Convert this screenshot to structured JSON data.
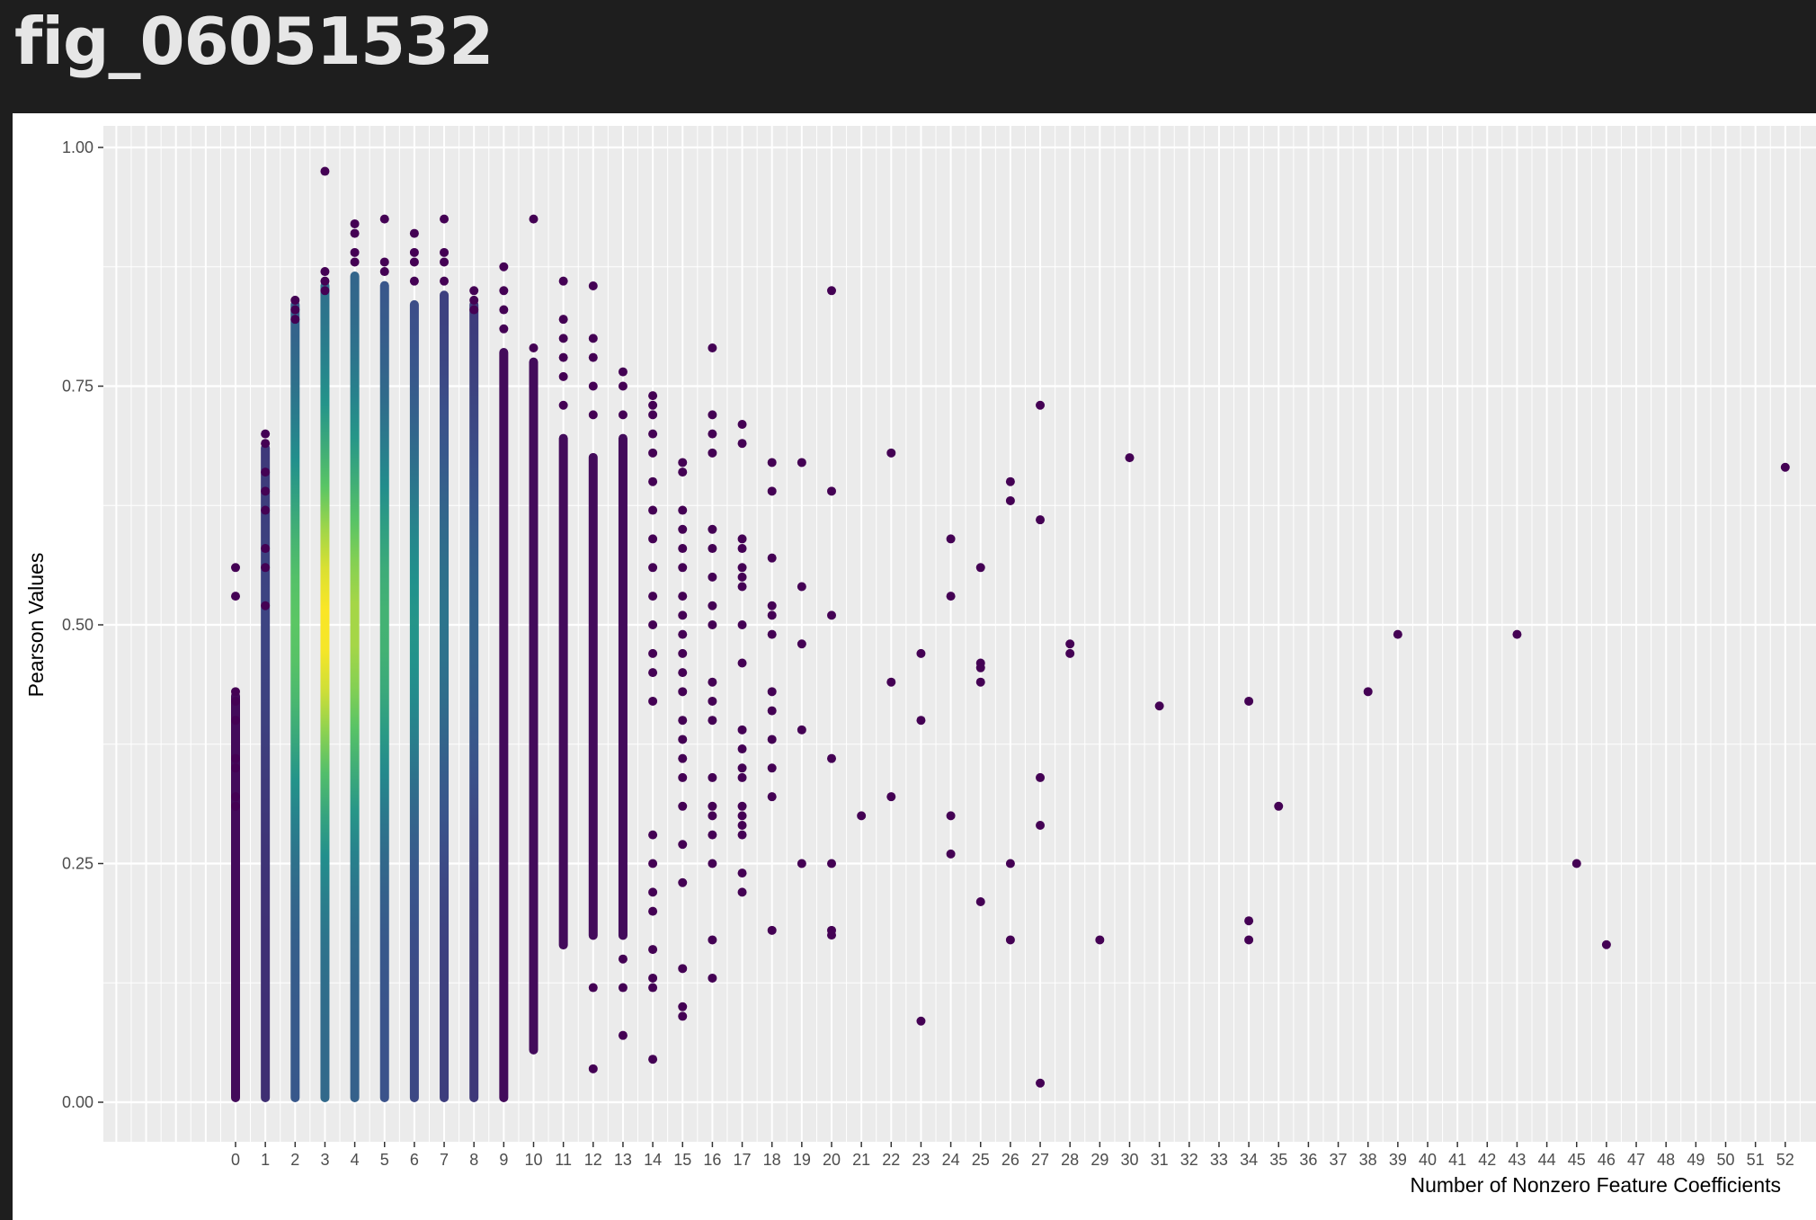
{
  "header": {
    "title": "fig_06051532"
  },
  "chart_data": {
    "type": "scatter",
    "title": "",
    "xlabel": "Number of Nonzero Feature Coefficients",
    "ylabel": "Pearson Values",
    "xlim": [
      -4.5,
      52.5
    ],
    "ylim": [
      -0.05,
      1.03
    ],
    "x_ticks": [
      0,
      1,
      2,
      3,
      4,
      5,
      6,
      7,
      8,
      9,
      10,
      11,
      12,
      13,
      14,
      15,
      16,
      17,
      18,
      19,
      20,
      21,
      22,
      23,
      24,
      25,
      26,
      27,
      28,
      29,
      30,
      31,
      32,
      33,
      34,
      35,
      36,
      37,
      38,
      39,
      40,
      41,
      42,
      43,
      44,
      45,
      46,
      47,
      48,
      49,
      50,
      51,
      52
    ],
    "y_ticks": [
      0.0,
      0.25,
      0.5,
      0.75,
      1.0
    ],
    "y_tick_labels": [
      "0.00",
      "0.25",
      "0.50",
      "0.75",
      "1.00"
    ],
    "grid": true,
    "legend": "none",
    "color_scale": "viridis (point density)",
    "palette": {
      "panel_bg": "#ebebeb",
      "grid": "#ffffff",
      "point_low": "#440154",
      "point_mid": "#21918c",
      "point_high": "#fde725"
    },
    "dense_columns": [
      {
        "x": 0,
        "ymin": 0.0,
        "ymax": 0.43,
        "peak": 0.05
      },
      {
        "x": 1,
        "ymin": 0.0,
        "ymax": 0.69,
        "peak": 0.1
      },
      {
        "x": 2,
        "ymin": 0.0,
        "ymax": 0.84,
        "peak": 0.7
      },
      {
        "x": 3,
        "ymin": 0.0,
        "ymax": 0.86,
        "peak": 1.0
      },
      {
        "x": 4,
        "ymin": 0.0,
        "ymax": 0.87,
        "peak": 0.85
      },
      {
        "x": 5,
        "ymin": 0.0,
        "ymax": 0.86,
        "peak": 0.6
      },
      {
        "x": 6,
        "ymin": 0.0,
        "ymax": 0.84,
        "peak": 0.45
      },
      {
        "x": 7,
        "ymin": 0.0,
        "ymax": 0.85,
        "peak": 0.3
      },
      {
        "x": 8,
        "ymin": 0.0,
        "ymax": 0.84,
        "peak": 0.22
      },
      {
        "x": 9,
        "ymin": 0.0,
        "ymax": 0.79,
        "peak": 0.08
      },
      {
        "x": 10,
        "ymin": 0.05,
        "ymax": 0.78,
        "peak": 0.05
      },
      {
        "x": 11,
        "ymin": 0.16,
        "ymax": 0.7,
        "peak": 0.03
      },
      {
        "x": 12,
        "ymin": 0.17,
        "ymax": 0.68,
        "peak": 0.02
      },
      {
        "x": 13,
        "ymin": 0.17,
        "ymax": 0.7,
        "peak": 0.02
      }
    ],
    "points": [
      [
        0,
        0.56
      ],
      [
        0,
        0.53
      ],
      [
        0,
        0.43
      ],
      [
        0,
        0.42
      ],
      [
        0,
        0.4
      ],
      [
        0,
        0.36
      ],
      [
        0,
        0.35
      ],
      [
        0,
        0.32
      ],
      [
        0,
        0.31
      ],
      [
        1,
        0.7
      ],
      [
        1,
        0.69
      ],
      [
        1,
        0.66
      ],
      [
        1,
        0.64
      ],
      [
        1,
        0.62
      ],
      [
        1,
        0.58
      ],
      [
        1,
        0.56
      ],
      [
        1,
        0.52
      ],
      [
        2,
        0.84
      ],
      [
        2,
        0.83
      ],
      [
        2,
        0.82
      ],
      [
        3,
        0.975
      ],
      [
        3,
        0.87
      ],
      [
        3,
        0.86
      ],
      [
        3,
        0.85
      ],
      [
        4,
        0.92
      ],
      [
        4,
        0.91
      ],
      [
        4,
        0.89
      ],
      [
        4,
        0.88
      ],
      [
        5,
        0.925
      ],
      [
        5,
        0.88
      ],
      [
        5,
        0.87
      ],
      [
        6,
        0.91
      ],
      [
        6,
        0.89
      ],
      [
        6,
        0.88
      ],
      [
        6,
        0.86
      ],
      [
        7,
        0.925
      ],
      [
        7,
        0.89
      ],
      [
        7,
        0.88
      ],
      [
        7,
        0.86
      ],
      [
        8,
        0.85
      ],
      [
        8,
        0.84
      ],
      [
        8,
        0.83
      ],
      [
        9,
        0.875
      ],
      [
        9,
        0.85
      ],
      [
        9,
        0.83
      ],
      [
        9,
        0.81
      ],
      [
        10,
        0.925
      ],
      [
        10,
        0.79
      ],
      [
        11,
        0.86
      ],
      [
        11,
        0.82
      ],
      [
        11,
        0.8
      ],
      [
        11,
        0.78
      ],
      [
        11,
        0.76
      ],
      [
        11,
        0.73
      ],
      [
        12,
        0.855
      ],
      [
        12,
        0.8
      ],
      [
        12,
        0.78
      ],
      [
        12,
        0.75
      ],
      [
        12,
        0.72
      ],
      [
        12,
        0.035
      ],
      [
        12,
        0.12
      ],
      [
        13,
        0.765
      ],
      [
        13,
        0.75
      ],
      [
        13,
        0.72
      ],
      [
        13,
        0.07
      ],
      [
        13,
        0.12
      ],
      [
        13,
        0.15
      ],
      [
        14,
        0.74
      ],
      [
        14,
        0.73
      ],
      [
        14,
        0.72
      ],
      [
        14,
        0.7
      ],
      [
        14,
        0.68
      ],
      [
        14,
        0.65
      ],
      [
        14,
        0.62
      ],
      [
        14,
        0.59
      ],
      [
        14,
        0.56
      ],
      [
        14,
        0.53
      ],
      [
        14,
        0.5
      ],
      [
        14,
        0.47
      ],
      [
        14,
        0.45
      ],
      [
        14,
        0.42
      ],
      [
        14,
        0.28
      ],
      [
        14,
        0.25
      ],
      [
        14,
        0.22
      ],
      [
        14,
        0.2
      ],
      [
        14,
        0.16
      ],
      [
        14,
        0.13
      ],
      [
        14,
        0.12
      ],
      [
        14,
        0.045
      ],
      [
        15,
        0.67
      ],
      [
        15,
        0.66
      ],
      [
        15,
        0.62
      ],
      [
        15,
        0.6
      ],
      [
        15,
        0.58
      ],
      [
        15,
        0.56
      ],
      [
        15,
        0.53
      ],
      [
        15,
        0.51
      ],
      [
        15,
        0.49
      ],
      [
        15,
        0.47
      ],
      [
        15,
        0.45
      ],
      [
        15,
        0.43
      ],
      [
        15,
        0.4
      ],
      [
        15,
        0.38
      ],
      [
        15,
        0.36
      ],
      [
        15,
        0.34
      ],
      [
        15,
        0.31
      ],
      [
        15,
        0.27
      ],
      [
        15,
        0.23
      ],
      [
        15,
        0.14
      ],
      [
        15,
        0.1
      ],
      [
        15,
        0.09
      ],
      [
        16,
        0.79
      ],
      [
        16,
        0.72
      ],
      [
        16,
        0.7
      ],
      [
        16,
        0.68
      ],
      [
        16,
        0.6
      ],
      [
        16,
        0.58
      ],
      [
        16,
        0.55
      ],
      [
        16,
        0.52
      ],
      [
        16,
        0.5
      ],
      [
        16,
        0.44
      ],
      [
        16,
        0.42
      ],
      [
        16,
        0.4
      ],
      [
        16,
        0.34
      ],
      [
        16,
        0.31
      ],
      [
        16,
        0.3
      ],
      [
        16,
        0.28
      ],
      [
        16,
        0.25
      ],
      [
        16,
        0.17
      ],
      [
        16,
        0.13
      ],
      [
        17,
        0.71
      ],
      [
        17,
        0.69
      ],
      [
        17,
        0.59
      ],
      [
        17,
        0.58
      ],
      [
        17,
        0.56
      ],
      [
        17,
        0.55
      ],
      [
        17,
        0.54
      ],
      [
        17,
        0.5
      ],
      [
        17,
        0.46
      ],
      [
        17,
        0.39
      ],
      [
        17,
        0.37
      ],
      [
        17,
        0.35
      ],
      [
        17,
        0.34
      ],
      [
        17,
        0.31
      ],
      [
        17,
        0.3
      ],
      [
        17,
        0.29
      ],
      [
        17,
        0.28
      ],
      [
        17,
        0.24
      ],
      [
        17,
        0.22
      ],
      [
        18,
        0.67
      ],
      [
        18,
        0.64
      ],
      [
        18,
        0.57
      ],
      [
        18,
        0.52
      ],
      [
        18,
        0.51
      ],
      [
        18,
        0.49
      ],
      [
        18,
        0.43
      ],
      [
        18,
        0.41
      ],
      [
        18,
        0.38
      ],
      [
        18,
        0.35
      ],
      [
        18,
        0.32
      ],
      [
        18,
        0.18
      ],
      [
        19,
        0.67
      ],
      [
        19,
        0.54
      ],
      [
        19,
        0.48
      ],
      [
        19,
        0.39
      ],
      [
        19,
        0.25
      ],
      [
        20,
        0.85
      ],
      [
        20,
        0.64
      ],
      [
        20,
        0.51
      ],
      [
        20,
        0.36
      ],
      [
        20,
        0.25
      ],
      [
        20,
        0.18
      ],
      [
        20,
        0.175
      ],
      [
        21,
        0.3
      ],
      [
        22,
        0.68
      ],
      [
        22,
        0.44
      ],
      [
        22,
        0.32
      ],
      [
        23,
        0.47
      ],
      [
        23,
        0.4
      ],
      [
        23,
        0.085
      ],
      [
        24,
        0.59
      ],
      [
        24,
        0.53
      ],
      [
        24,
        0.3
      ],
      [
        24,
        0.26
      ],
      [
        25,
        0.56
      ],
      [
        25,
        0.46
      ],
      [
        25,
        0.455
      ],
      [
        25,
        0.44
      ],
      [
        25,
        0.21
      ],
      [
        26,
        0.65
      ],
      [
        26,
        0.63
      ],
      [
        26,
        0.25
      ],
      [
        26,
        0.17
      ],
      [
        27,
        0.73
      ],
      [
        27,
        0.61
      ],
      [
        27,
        0.34
      ],
      [
        27,
        0.29
      ],
      [
        27,
        0.02
      ],
      [
        28,
        0.48
      ],
      [
        28,
        0.47
      ],
      [
        29,
        0.17
      ],
      [
        30,
        0.675
      ],
      [
        31,
        0.415
      ],
      [
        34,
        0.42
      ],
      [
        34,
        0.19
      ],
      [
        34,
        0.17
      ],
      [
        35,
        0.31
      ],
      [
        38,
        0.43
      ],
      [
        39,
        0.49
      ],
      [
        43,
        0.49
      ],
      [
        45,
        0.25
      ],
      [
        46,
        0.165
      ],
      [
        52,
        0.665
      ]
    ]
  }
}
